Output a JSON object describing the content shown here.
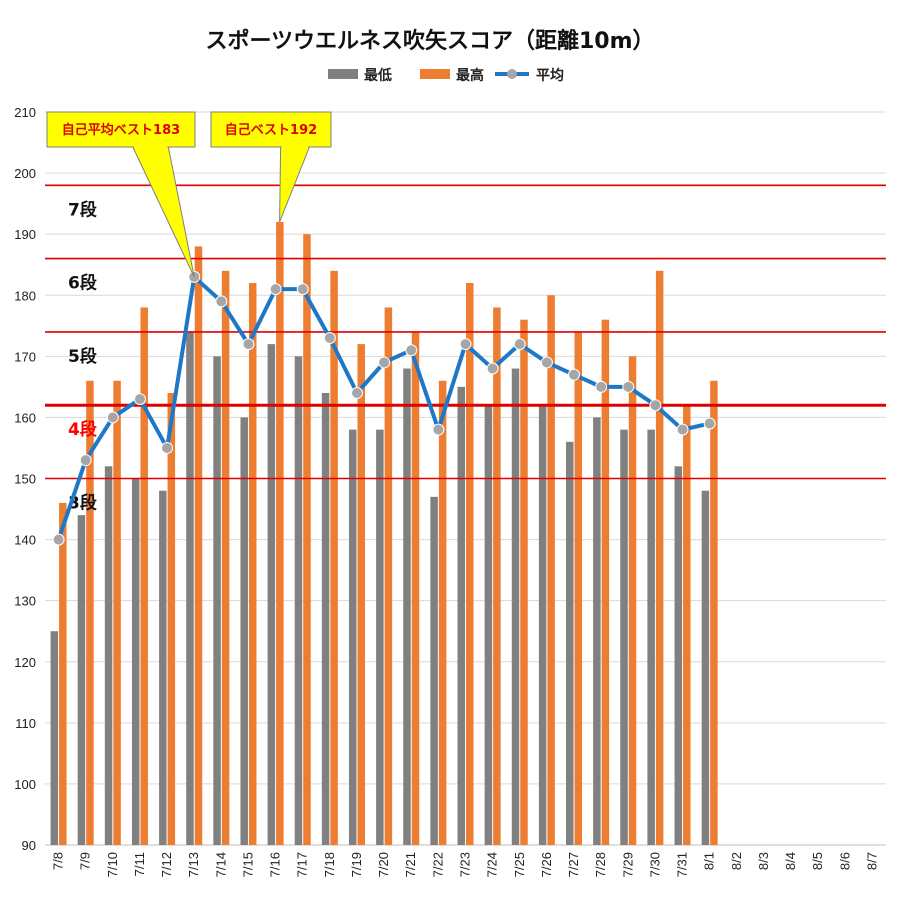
{
  "chart_data": {
    "type": "bar",
    "title": "スポーツウエルネス吹矢スコア（距離10m）",
    "xlabel": "",
    "ylabel": "",
    "ylim": [
      90,
      210
    ],
    "yticks": [
      90,
      100,
      110,
      120,
      130,
      140,
      150,
      160,
      170,
      180,
      190,
      200,
      210
    ],
    "grid": true,
    "legend_position": "top",
    "categories": [
      "7/8",
      "7/9",
      "7/10",
      "7/11",
      "7/12",
      "7/13",
      "7/14",
      "7/15",
      "7/16",
      "7/17",
      "7/18",
      "7/19",
      "7/20",
      "7/21",
      "7/22",
      "7/23",
      "7/24",
      "7/25",
      "7/26",
      "7/27",
      "7/28",
      "7/29",
      "7/30",
      "7/31",
      "8/1",
      "8/2",
      "8/3",
      "8/4",
      "8/5",
      "8/6",
      "8/7"
    ],
    "series": [
      {
        "name": "最低",
        "kind": "bar",
        "color": "#808080",
        "values": [
          125,
          144,
          152,
          150,
          148,
          174,
          170,
          160,
          172,
          170,
          164,
          158,
          158,
          168,
          147,
          165,
          162,
          168,
          162,
          156,
          160,
          158,
          158,
          152,
          148,
          null,
          null,
          null,
          null,
          null,
          null
        ]
      },
      {
        "name": "最高",
        "kind": "bar",
        "color": "#ed7d31",
        "values": [
          146,
          166,
          166,
          178,
          164,
          188,
          184,
          182,
          192,
          190,
          184,
          172,
          178,
          174,
          166,
          182,
          178,
          176,
          180,
          174,
          176,
          170,
          184,
          162,
          166,
          null,
          null,
          null,
          null,
          null,
          null
        ]
      },
      {
        "name": "平均",
        "kind": "line",
        "color": "#1f77c8",
        "marker_color": "#a6a6a6",
        "values": [
          140,
          153,
          160,
          163,
          155,
          183,
          179,
          172,
          181,
          181,
          173,
          164,
          169,
          171,
          158,
          172,
          168,
          172,
          169,
          167,
          165,
          165,
          162,
          158,
          159,
          null,
          null,
          null,
          null,
          null,
          null
        ]
      }
    ],
    "reference_lines": [
      {
        "value": 198,
        "label": "7段",
        "label_color": "#111111"
      },
      {
        "value": 186,
        "label": "6段",
        "label_color": "#111111"
      },
      {
        "value": 174,
        "label": "5段",
        "label_color": "#111111"
      },
      {
        "value": 162,
        "label": "4段",
        "label_color": "#ff0000",
        "emphasis": true
      },
      {
        "value": 150,
        "label": "3段",
        "label_color": "#111111"
      }
    ],
    "annotations": [
      {
        "text": "自己平均ベスト183",
        "category": "7/13",
        "value": 183,
        "target_series": "平均"
      },
      {
        "text": "自己ベスト192",
        "category": "7/16",
        "value": 192,
        "target_series": "最高"
      }
    ],
    "colors": {
      "reference_line": "#e00000",
      "callout_fill": "#ffff00",
      "callout_text": "#e00000",
      "grid": "#d9d9d9"
    }
  }
}
